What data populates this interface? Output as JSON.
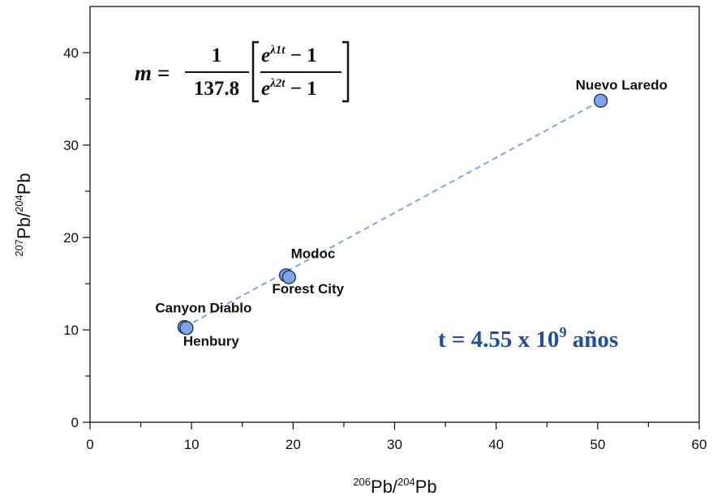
{
  "chart_data": {
    "type": "scatter",
    "xlabel": {
      "sup1": "206",
      "main1": "Pb/",
      "sup2": "204",
      "main2": "Pb"
    },
    "ylabel": {
      "sup1": "207",
      "main1": "Pb/",
      "sup2": "204",
      "main2": "Pb"
    },
    "xlim": [
      0,
      60
    ],
    "ylim": [
      0,
      45
    ],
    "x_ticks": [
      0,
      10,
      20,
      30,
      40,
      50,
      60
    ],
    "y_ticks": [
      0,
      10,
      20,
      30,
      40
    ],
    "x_tick_labels": [
      "0",
      "10",
      "20",
      "30",
      "40",
      "50",
      "60"
    ],
    "y_tick_labels": [
      "0",
      "10",
      "20",
      "30",
      "40"
    ],
    "grid": false,
    "points": [
      {
        "label": "Canyon Diablo",
        "x": 9.3,
        "y": 10.3
      },
      {
        "label": "Henbury",
        "x": 9.5,
        "y": 10.2
      },
      {
        "label": "Modoc",
        "x": 19.3,
        "y": 15.9
      },
      {
        "label": "Forest City",
        "x": 19.6,
        "y": 15.7
      },
      {
        "label": "Nuevo Laredo",
        "x": 50.3,
        "y": 34.8
      }
    ],
    "fit_line": {
      "x": [
        9.3,
        50.3
      ],
      "y": [
        10.3,
        34.8
      ],
      "style": "dashed"
    },
    "point_color": "#7fa3e8",
    "point_edge_color": "#1f2a44",
    "line_color": "#7fa3e8",
    "annotation": {
      "text": "t = 4.55 x 10",
      "exponent": "9",
      "suffix": " años",
      "color": "#1f4ea0"
    },
    "formula": {
      "lhs": "m =",
      "numerator": "1",
      "denominator": "137.8",
      "inner_numerator": "e",
      "inner_num_exp": "λ1t",
      "inner_num_tail": " − 1",
      "inner_denominator": "e",
      "inner_den_exp": "λ2t",
      "inner_den_tail": " − 1"
    }
  }
}
